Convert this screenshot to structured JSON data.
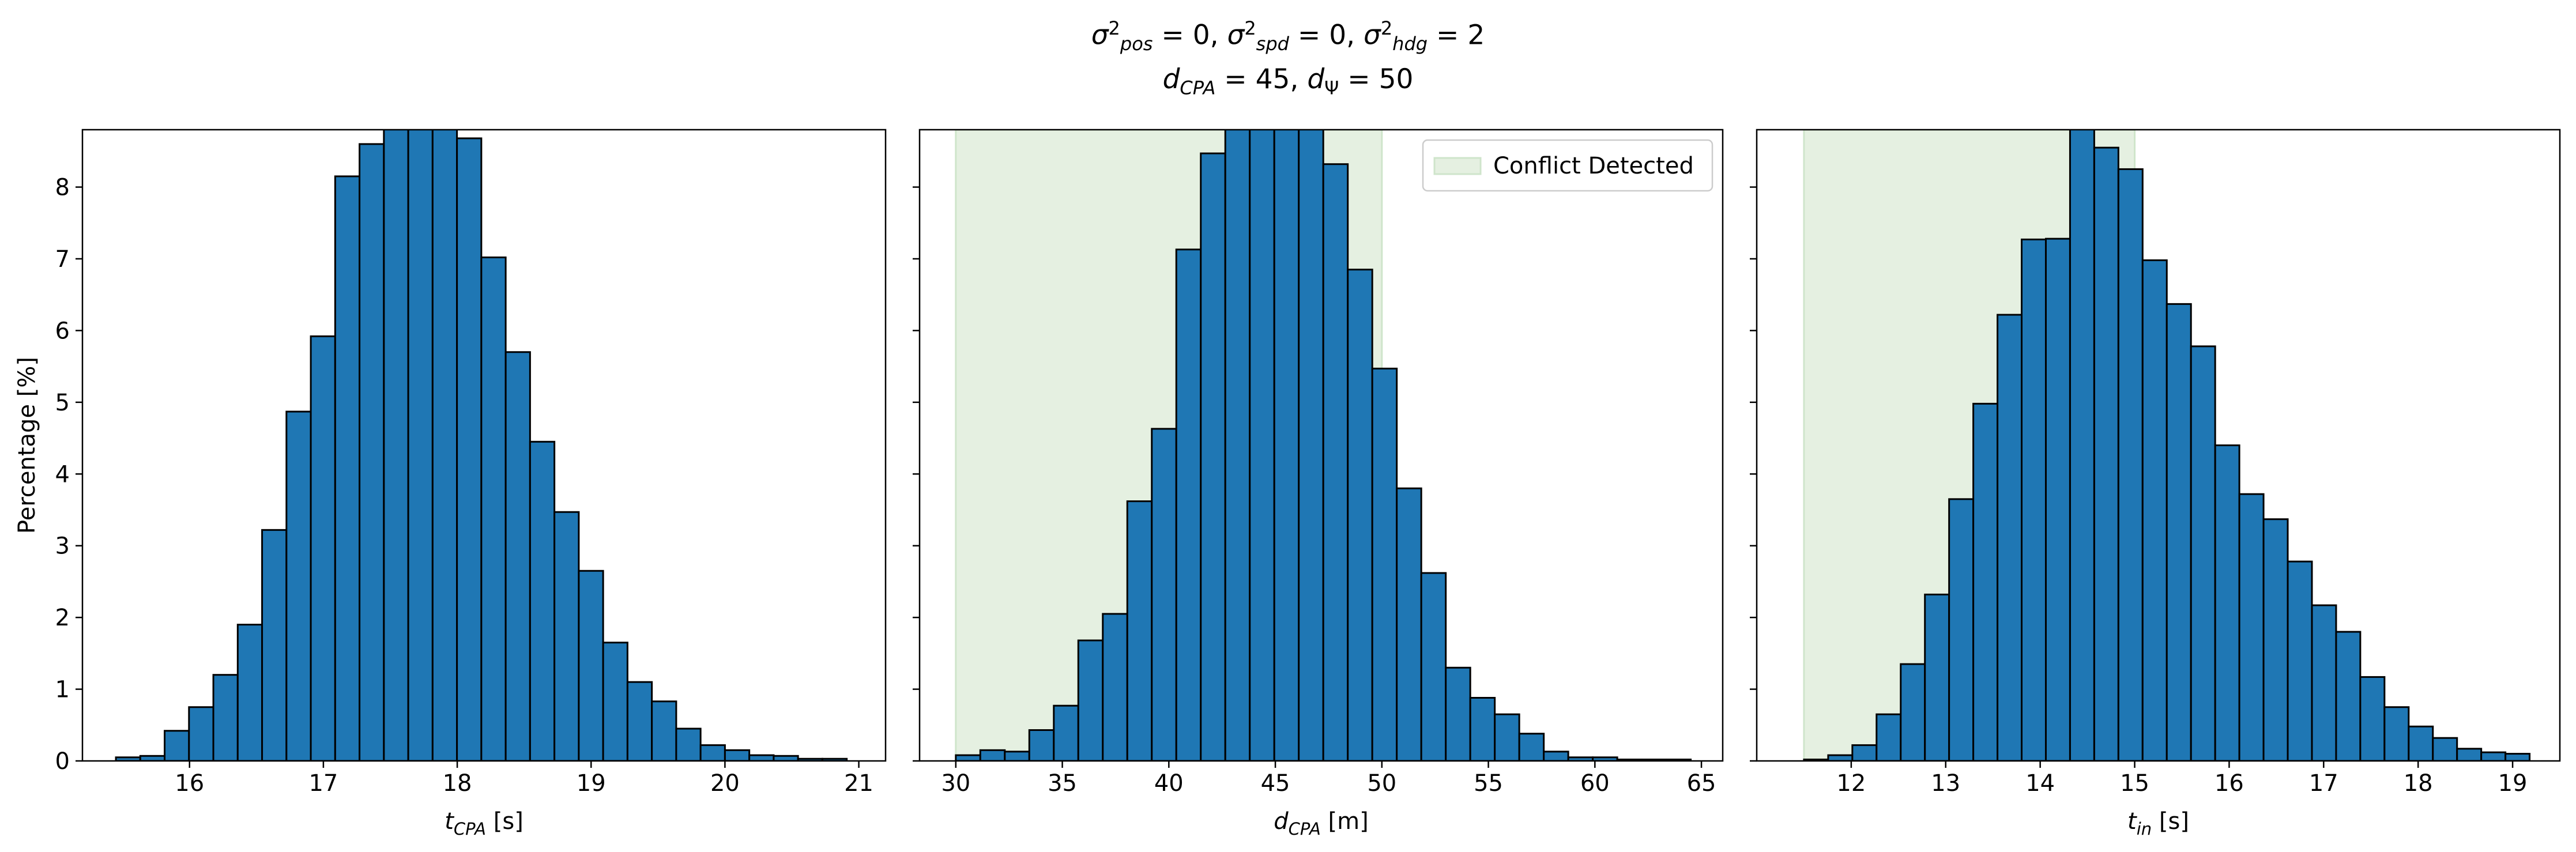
{
  "figure": {
    "title_line1": "σ²pos = 0, σ²spd = 0, σ²hdg = 2",
    "title_line2": "dCPA = 45, dΨ = 50"
  },
  "colors": {
    "bar": "#1f77b4",
    "edge": "#000000",
    "shade": "#e5f0e1",
    "shade_edge": "#cfe5cb"
  },
  "chart_data": [
    {
      "type": "bar",
      "name": "t_CPA histogram",
      "xlabel": "tCPA [s]",
      "ylabel": "Percentage [%]",
      "xlim": [
        15.2,
        21.2
      ],
      "ylim": [
        0,
        8.8
      ],
      "xticks": [
        16,
        17,
        18,
        19,
        20,
        21
      ],
      "yticks": [
        0,
        1,
        2,
        3,
        4,
        5,
        6,
        7,
        8
      ],
      "bin_start": 15.45,
      "bin_width": 0.182,
      "values": [
        0.05,
        0.07,
        0.42,
        0.75,
        1.2,
        1.9,
        3.22,
        4.87,
        5.92,
        8.15,
        8.6,
        8.95,
        8.95,
        8.95,
        8.68,
        7.02,
        5.7,
        4.45,
        3.47,
        2.65,
        1.65,
        1.1,
        0.83,
        0.45,
        0.22,
        0.15,
        0.08,
        0.07,
        0.03,
        0.03
      ],
      "shade": null,
      "legend": null
    },
    {
      "type": "bar",
      "name": "d_CPA histogram",
      "xlabel": "dCPA [m]",
      "ylabel": "",
      "xlim": [
        28.3,
        66.0
      ],
      "ylim": [
        0,
        8.8
      ],
      "xticks": [
        30,
        35,
        40,
        45,
        50,
        55,
        60,
        65
      ],
      "yticks": [
        0,
        1,
        2,
        3,
        4,
        5,
        6,
        7,
        8
      ],
      "bin_start": 30.0,
      "bin_width": 1.15,
      "values": [
        0.08,
        0.15,
        0.13,
        0.43,
        0.77,
        1.68,
        2.05,
        3.62,
        4.63,
        7.13,
        8.47,
        8.95,
        8.95,
        8.95,
        8.95,
        8.32,
        6.85,
        5.47,
        3.8,
        2.62,
        1.3,
        0.88,
        0.65,
        0.38,
        0.13,
        0.05,
        0.05,
        0.02,
        0.02,
        0.02
      ],
      "shade": [
        30.0,
        50.0
      ],
      "legend": "Conflict Detected"
    },
    {
      "type": "bar",
      "name": "t_in histogram",
      "xlabel": "tin [s]",
      "ylabel": "",
      "xlim": [
        11.0,
        19.5
      ],
      "ylim": [
        0,
        8.8
      ],
      "xticks": [
        12,
        13,
        14,
        15,
        16,
        17,
        18,
        19
      ],
      "yticks": [
        0,
        1,
        2,
        3,
        4,
        5,
        6,
        7,
        8
      ],
      "bin_start": 11.5,
      "bin_width": 0.256,
      "values": [
        0.02,
        0.08,
        0.22,
        0.65,
        1.35,
        2.32,
        3.65,
        4.98,
        6.22,
        7.27,
        7.28,
        8.95,
        8.55,
        8.25,
        6.98,
        6.37,
        5.78,
        4.4,
        3.72,
        3.37,
        2.78,
        2.17,
        1.8,
        1.17,
        0.75,
        0.48,
        0.32,
        0.17,
        0.12,
        0.1
      ],
      "shade": [
        11.5,
        15.0
      ],
      "legend": null
    }
  ]
}
